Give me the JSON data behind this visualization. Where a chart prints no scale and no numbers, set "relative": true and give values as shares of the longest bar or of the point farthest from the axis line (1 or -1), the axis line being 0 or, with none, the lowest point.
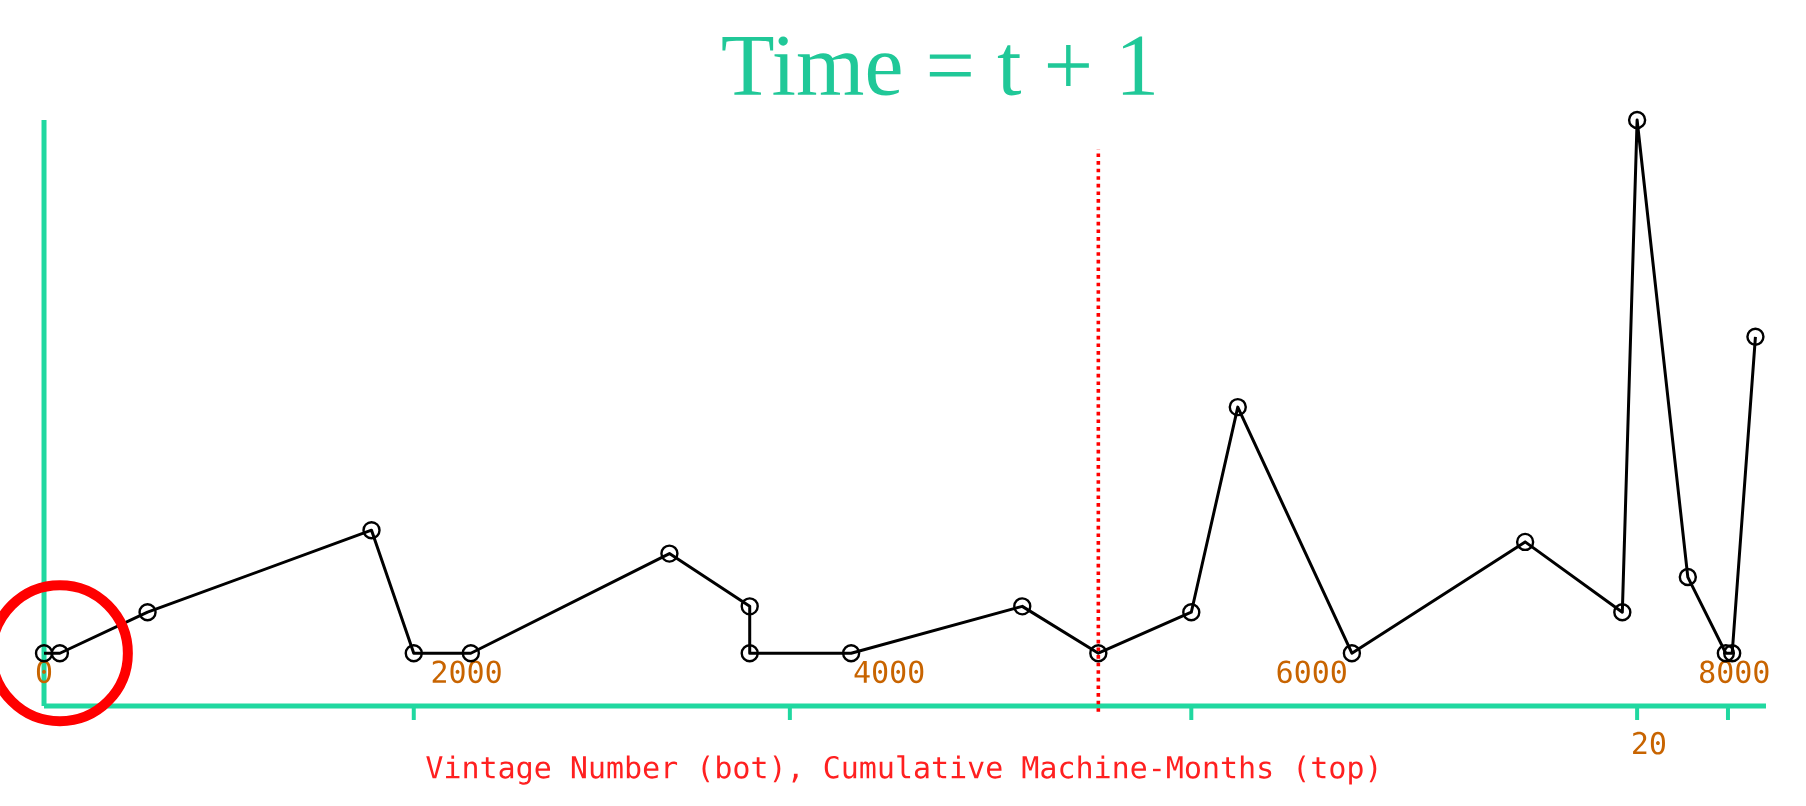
{
  "chart_data": {
    "type": "line",
    "title": "Time = t + 1",
    "xlabel": "Vintage Number (bot), Cumulative Machine-Months (top)",
    "relative": true,
    "marker": "circle",
    "line_style": "solid",
    "x": [
      0,
      75,
      490,
      1550,
      1750,
      2020,
      2960,
      3340,
      3340,
      3820,
      4630,
      4990,
      5430,
      5650,
      6190,
      7010,
      7470,
      7540,
      7780,
      7960,
      7990,
      8100
    ],
    "series": [
      {
        "color": "#000000",
        "values": [
          0.09,
          0.09,
          0.16,
          0.3,
          0.09,
          0.09,
          0.26,
          0.17,
          0.09,
          0.09,
          0.17,
          0.09,
          0.16,
          0.51,
          0.09,
          0.28,
          0.16,
          1,
          0.22,
          0.09,
          0.09,
          0.63
        ]
      }
    ],
    "xlim": [
      0,
      8150
    ],
    "xticks": [
      0,
      2000,
      4000,
      6000,
      8000,
      {
        "value": 1750,
        "label": null
      },
      {
        "value": 3530,
        "label": null
      },
      {
        "value": 5430,
        "label": null
      },
      {
        "value": 7540,
        "label": null
      },
      {
        "value": 7970,
        "label": null
      }
    ],
    "annotations": [
      "20"
    ],
    "ref_lines": [
      {
        "axis": "x",
        "value": 4990,
        "color": "#ff0000",
        "line_style": "dotted"
      }
    ]
  }
}
